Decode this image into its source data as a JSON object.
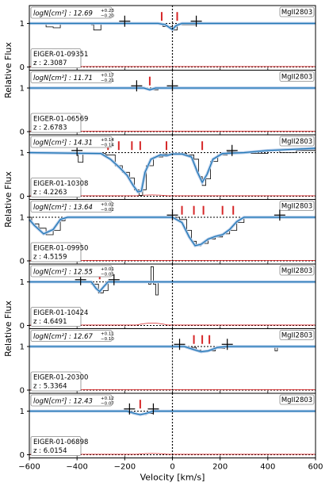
{
  "chart_data": {
    "type": "line",
    "xlabel": "Velocity [km/s]",
    "ylabel": "Relative Flux",
    "xlim": [
      -600,
      600
    ],
    "ylim": [
      0,
      1.3
    ],
    "xticks": [
      "−600",
      "−400",
      "−200",
      "0",
      "200",
      "400",
      "600"
    ],
    "xtick_values": [
      -600,
      -400,
      -200,
      0,
      200,
      400,
      600
    ],
    "yticks": [
      "0",
      "1"
    ],
    "ion": "MgII2803",
    "colors": {
      "data": "#000000",
      "model": "#1f77b4",
      "model_halo": "#aec7e8",
      "error": "#d62728",
      "component": "#d62728"
    },
    "panels": [
      {
        "name": "EIGER-01-09351",
        "z": "z : 2.3087",
        "logN": "logN[cm²] : 12.69",
        "err_up": "+0.23",
        "err_dn": "−0.20",
        "components": [
          -45,
          20
        ],
        "markers": [
          -200,
          100
        ],
        "data_points": [
          [
            -600,
            1.0
          ],
          [
            -560,
            1.0
          ],
          [
            -530,
            0.92
          ],
          [
            -500,
            0.9
          ],
          [
            -470,
            0.98
          ],
          [
            -400,
            0.98
          ],
          [
            -340,
            0.97
          ],
          [
            -330,
            0.85
          ],
          [
            -300,
            0.99
          ],
          [
            -200,
            0.99
          ],
          [
            -100,
            0.98
          ],
          [
            -40,
            0.93
          ],
          [
            0,
            0.85
          ],
          [
            20,
            0.97
          ],
          [
            100,
            1.0
          ],
          [
            300,
            1.0
          ],
          [
            600,
            1.0
          ]
        ],
        "model_points": [
          [
            -600,
            1.0
          ],
          [
            -60,
            1.0
          ],
          [
            -30,
            0.97
          ],
          [
            0,
            0.86
          ],
          [
            15,
            0.95
          ],
          [
            40,
            1.0
          ],
          [
            600,
            1.0
          ]
        ],
        "error_level": 0.0
      },
      {
        "name": "EIGER-01-06569",
        "z": "z : 2.6783",
        "logN": "logN[cm²] : 11.71",
        "err_up": "+0.17",
        "err_dn": "−0.21",
        "components": [
          -95
        ],
        "markers": [
          -150,
          0
        ],
        "data_points": [
          [
            -600,
            1.0
          ],
          [
            -300,
            1.0
          ],
          [
            -120,
            0.98
          ],
          [
            -90,
            0.96
          ],
          [
            -60,
            0.99
          ],
          [
            0,
            1.0
          ],
          [
            600,
            1.0
          ]
        ],
        "model_points": [
          [
            -600,
            1.0
          ],
          [
            -120,
            1.0
          ],
          [
            -95,
            0.96
          ],
          [
            -70,
            1.0
          ],
          [
            600,
            1.0
          ]
        ],
        "error_level": 0.0
      },
      {
        "name": "EIGER-01-10308",
        "z": "z : 4.2263",
        "logN": "logN[cm²] : 14.31",
        "err_up": "+0.14",
        "err_dn": "−0.14",
        "components": [
          -270,
          -225,
          -170,
          -135,
          -25,
          125
        ],
        "markers": [
          -400,
          250
        ],
        "data_points": [
          [
            -600,
            1.0
          ],
          [
            -420,
            1.0
          ],
          [
            -395,
            0.78
          ],
          [
            -375,
            1.0
          ],
          [
            -330,
            0.98
          ],
          [
            -280,
            0.95
          ],
          [
            -240,
            0.7
          ],
          [
            -210,
            0.55
          ],
          [
            -180,
            0.42
          ],
          [
            -160,
            0.15
          ],
          [
            -140,
            0.02
          ],
          [
            -125,
            0.15
          ],
          [
            -110,
            0.7
          ],
          [
            -80,
            0.9
          ],
          [
            -40,
            0.97
          ],
          [
            -20,
            0.95
          ],
          [
            20,
            0.98
          ],
          [
            60,
            0.95
          ],
          [
            90,
            0.85
          ],
          [
            110,
            0.45
          ],
          [
            125,
            0.25
          ],
          [
            140,
            0.4
          ],
          [
            160,
            0.8
          ],
          [
            190,
            0.95
          ],
          [
            230,
            1.02
          ],
          [
            280,
            1.02
          ],
          [
            330,
            0.98
          ],
          [
            400,
            1.05
          ],
          [
            450,
            1.0
          ],
          [
            520,
            1.05
          ],
          [
            600,
            1.0
          ]
        ],
        "model_points": [
          [
            -600,
            1.0
          ],
          [
            -300,
            0.98
          ],
          [
            -260,
            0.85
          ],
          [
            -220,
            0.65
          ],
          [
            -190,
            0.48
          ],
          [
            -165,
            0.25
          ],
          [
            -145,
            0.1
          ],
          [
            -130,
            0.12
          ],
          [
            -115,
            0.55
          ],
          [
            -90,
            0.85
          ],
          [
            -50,
            0.95
          ],
          [
            -25,
            0.93
          ],
          [
            0,
            0.97
          ],
          [
            40,
            0.97
          ],
          [
            80,
            0.9
          ],
          [
            105,
            0.55
          ],
          [
            125,
            0.32
          ],
          [
            145,
            0.5
          ],
          [
            170,
            0.85
          ],
          [
            210,
            0.98
          ],
          [
            300,
            1.0
          ],
          [
            400,
            1.05
          ],
          [
            600,
            1.1
          ]
        ],
        "error_level": 0.05
      },
      {
        "name": "EIGER-01-09950",
        "z": "z : 4.5159",
        "logN": "logN[cm²] : 13.64",
        "err_up": "+0.02",
        "err_dn": "−0.02",
        "components": [
          40,
          90,
          130,
          210,
          255
        ],
        "markers": [
          0,
          450
        ],
        "data_points": [
          [
            -600,
            1.0
          ],
          [
            -590,
            0.85
          ],
          [
            -560,
            0.75
          ],
          [
            -530,
            0.6
          ],
          [
            -500,
            0.7
          ],
          [
            -470,
            0.92
          ],
          [
            -450,
            1.0
          ],
          [
            -300,
            1.0
          ],
          [
            0,
            1.0
          ],
          [
            30,
            0.95
          ],
          [
            60,
            0.7
          ],
          [
            80,
            0.45
          ],
          [
            100,
            0.35
          ],
          [
            120,
            0.4
          ],
          [
            150,
            0.5
          ],
          [
            180,
            0.55
          ],
          [
            210,
            0.62
          ],
          [
            240,
            0.7
          ],
          [
            270,
            0.88
          ],
          [
            300,
            0.98
          ],
          [
            600,
            1.0
          ]
        ],
        "model_points": [
          [
            -600,
            0.95
          ],
          [
            -580,
            0.82
          ],
          [
            -540,
            0.62
          ],
          [
            -500,
            0.72
          ],
          [
            -470,
            0.95
          ],
          [
            -440,
            1.0
          ],
          [
            0,
            1.0
          ],
          [
            40,
            0.88
          ],
          [
            70,
            0.55
          ],
          [
            95,
            0.35
          ],
          [
            120,
            0.38
          ],
          [
            150,
            0.5
          ],
          [
            180,
            0.56
          ],
          [
            210,
            0.6
          ],
          [
            240,
            0.72
          ],
          [
            270,
            0.9
          ],
          [
            300,
            1.0
          ],
          [
            600,
            1.0
          ]
        ],
        "error_level": 0.0
      },
      {
        "name": "EIGER-01-10424",
        "z": "z : 4.6491",
        "logN": "logN[cm²] : 12.55",
        "err_up": "+0.01",
        "err_dn": "−0.01",
        "components": [
          -305
        ],
        "markers": [
          -385,
          -245
        ],
        "data_points": [
          [
            -600,
            1.0
          ],
          [
            -400,
            1.0
          ],
          [
            -340,
            0.95
          ],
          [
            -310,
            0.75
          ],
          [
            -290,
            0.8
          ],
          [
            -270,
            0.98
          ],
          [
            -200,
            1.0
          ],
          [
            -100,
            0.95
          ],
          [
            -90,
            1.35
          ],
          [
            -80,
            0.95
          ],
          [
            -70,
            0.7
          ],
          [
            -60,
            1.0
          ],
          [
            0,
            1.0
          ],
          [
            600,
            1.0
          ]
        ],
        "model_points": [
          [
            -600,
            1.0
          ],
          [
            -340,
            1.0
          ],
          [
            -320,
            0.85
          ],
          [
            -305,
            0.78
          ],
          [
            -290,
            0.88
          ],
          [
            -270,
            1.0
          ],
          [
            600,
            1.0
          ]
        ],
        "error_level": 0.1
      },
      {
        "name": "EIGER-01-20300",
        "z": "z : 5.3364",
        "logN": "logN[cm²] : 12.67",
        "err_up": "+0.11",
        "err_dn": "−0.10",
        "components": [
          90,
          125,
          155
        ],
        "markers": [
          30,
          230
        ],
        "data_points": [
          [
            -600,
            1.0
          ],
          [
            -100,
            1.0
          ],
          [
            0,
            1.0
          ],
          [
            60,
            0.98
          ],
          [
            100,
            0.92
          ],
          [
            120,
            0.88
          ],
          [
            150,
            0.9
          ],
          [
            180,
            0.96
          ],
          [
            220,
            1.0
          ],
          [
            420,
            1.0
          ],
          [
            430,
            0.9
          ],
          [
            440,
            1.0
          ],
          [
            600,
            1.0
          ]
        ],
        "model_points": [
          [
            -600,
            1.0
          ],
          [
            50,
            1.0
          ],
          [
            90,
            0.93
          ],
          [
            120,
            0.88
          ],
          [
            150,
            0.9
          ],
          [
            190,
            0.98
          ],
          [
            230,
            1.0
          ],
          [
            600,
            1.0
          ]
        ],
        "error_level": 0.0
      },
      {
        "name": "EIGER-01-06898",
        "z": "z : 6.0154",
        "logN": "logN[cm²] : 12.43",
        "err_up": "+0.12",
        "err_dn": "−0.07",
        "components": [
          -135
        ],
        "markers": [
          -180,
          -80
        ],
        "data_points": [
          [
            -600,
            1.0
          ],
          [
            -300,
            1.0
          ],
          [
            -200,
            0.98
          ],
          [
            -160,
            0.94
          ],
          [
            -140,
            0.92
          ],
          [
            -110,
            0.95
          ],
          [
            -80,
            1.0
          ],
          [
            100,
            1.0
          ],
          [
            600,
            1.0
          ]
        ],
        "model_points": [
          [
            -600,
            1.0
          ],
          [
            -190,
            1.0
          ],
          [
            -160,
            0.95
          ],
          [
            -135,
            0.92
          ],
          [
            -110,
            0.95
          ],
          [
            -80,
            1.0
          ],
          [
            600,
            1.0
          ]
        ],
        "error_level": 0.05
      }
    ]
  }
}
